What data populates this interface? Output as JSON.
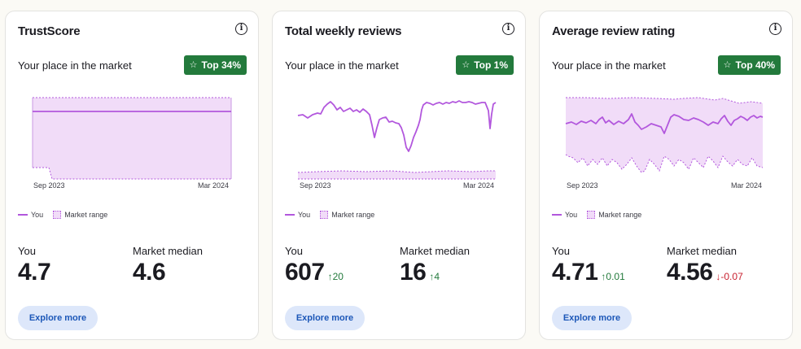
{
  "colors": {
    "badge": "#237a3c",
    "you_line": "#b257dd",
    "range_fill": "#f1dcf8",
    "up": "#237a3c",
    "down": "#c8202f",
    "button_bg": "#dde7fa",
    "button_text": "#1c57b8"
  },
  "cards": [
    {
      "title": "TrustScore",
      "place_label": "Your place in the market",
      "badge": "Top 34%",
      "chart": {
        "x_start": "Sep 2023",
        "x_end": "Mar 2024",
        "legend_you": "You",
        "legend_range": "Market range"
      },
      "you_label": "You",
      "you_value": "4.7",
      "you_delta": "",
      "median_label": "Market median",
      "median_value": "4.6",
      "median_delta": "",
      "button": "Explore more"
    },
    {
      "title": "Total weekly reviews",
      "place_label": "Your place in the market",
      "badge": "Top 1%",
      "chart": {
        "x_start": "Sep 2023",
        "x_end": "Mar 2024",
        "legend_you": "You",
        "legend_range": "Market range"
      },
      "you_label": "You",
      "you_value": "607",
      "you_delta": "20",
      "median_label": "Market median",
      "median_value": "16",
      "median_delta": "4",
      "button": "Explore more"
    },
    {
      "title": "Average review rating",
      "place_label": "Your place in the market",
      "badge": "Top 40%",
      "chart": {
        "x_start": "Sep 2023",
        "x_end": "Mar 2024",
        "legend_you": "You",
        "legend_range": "Market range"
      },
      "you_label": "You",
      "you_value": "4.71",
      "you_delta": "0.01",
      "median_label": "Market median",
      "median_value": "4.56",
      "median_delta": "-0.07",
      "button": "Explore more"
    }
  ]
}
